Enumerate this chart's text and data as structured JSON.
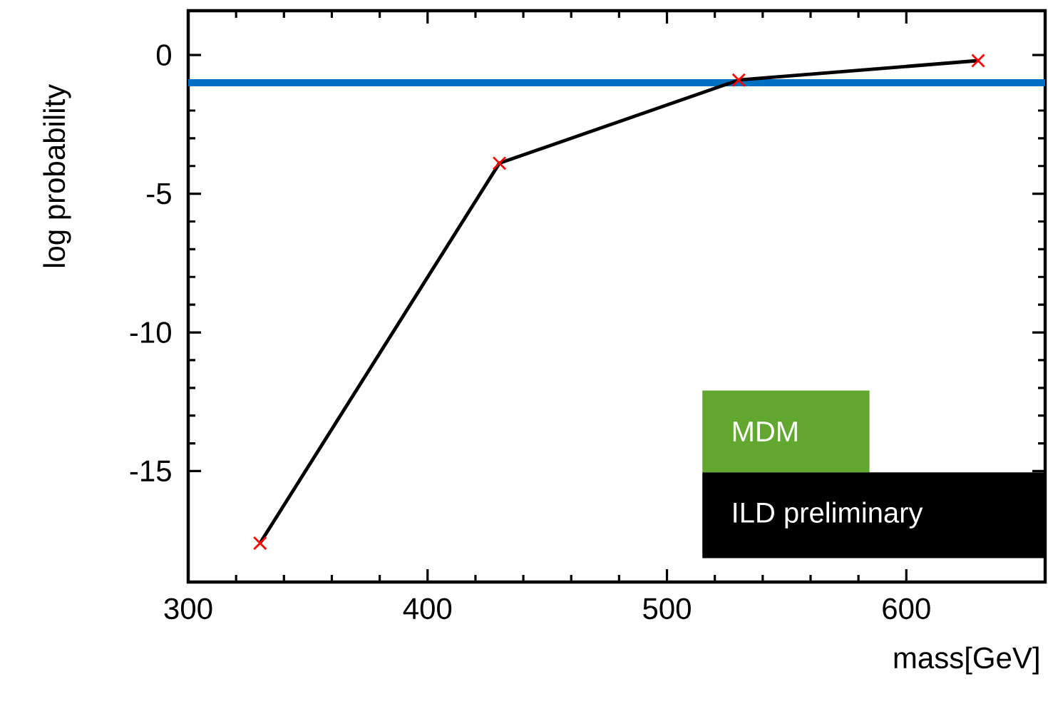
{
  "chart_data": {
    "type": "line",
    "xlabel": "mass[GeV]",
    "ylabel": "log probability",
    "x": [
      330,
      430,
      530,
      630
    ],
    "series": [
      {
        "color": "#000000",
        "values": [
          -17.6,
          -3.9,
          -0.9,
          -0.2
        ]
      }
    ],
    "marker": "cross",
    "line_style": "solid",
    "xlim": [
      300,
      658
    ],
    "ylim": [
      -19,
      1.6
    ],
    "xticks": [
      300,
      400,
      500,
      600
    ],
    "yticks": [
      -15,
      -10,
      -5,
      0
    ],
    "ref_lines": [
      {
        "axis": "y",
        "value": -1,
        "color": "#0070c0"
      }
    ],
    "annotations": [
      "MDM",
      "ILD preliminary"
    ]
  }
}
